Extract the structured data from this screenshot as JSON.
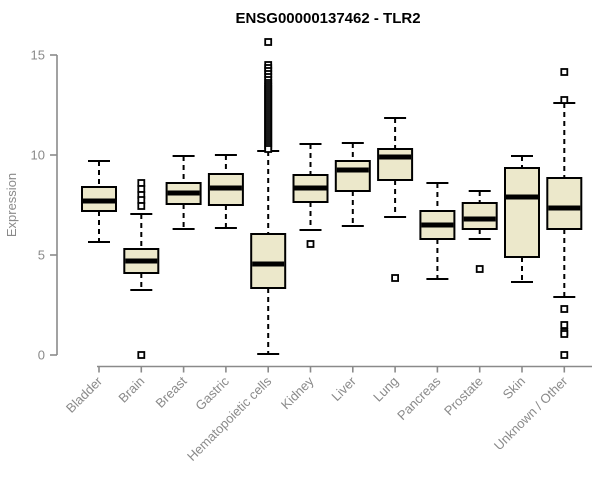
{
  "figure": {
    "background": "#ffffff"
  },
  "chart_data": {
    "type": "boxplot",
    "title": "ENSG00000137462 - TLR2",
    "xlabel": "",
    "ylabel": "Expression",
    "ylim": [
      0,
      15
    ],
    "yticks": [
      0,
      5,
      10,
      15
    ],
    "grid": false,
    "legend": "none",
    "categories": [
      "Bladder",
      "Brain",
      "Breast",
      "Gastric",
      "Hematopoietic cells",
      "Kidney",
      "Liver",
      "Lung",
      "Pancreas",
      "Prostate",
      "Skin",
      "Unknown / Other"
    ],
    "series": [
      {
        "label": "Bladder",
        "whisker_low": 5.65,
        "q1": 7.2,
        "median": 7.7,
        "q3": 8.4,
        "whisker_high": 9.7,
        "outliers": []
      },
      {
        "label": "Brain",
        "whisker_low": 3.25,
        "q1": 4.1,
        "median": 4.7,
        "q3": 5.3,
        "whisker_high": 7.05,
        "outliers": [
          8.6,
          8.3,
          8.0,
          7.75,
          7.45,
          0
        ]
      },
      {
        "label": "Breast",
        "whisker_low": 6.3,
        "q1": 7.55,
        "median": 8.1,
        "q3": 8.6,
        "whisker_high": 9.95,
        "outliers": []
      },
      {
        "label": "Gastric",
        "whisker_low": 6.35,
        "q1": 7.5,
        "median": 8.35,
        "q3": 9.05,
        "whisker_high": 10.0,
        "outliers": []
      },
      {
        "label": "Hematopoietic cells",
        "whisker_low": 0.05,
        "q1": 3.35,
        "median": 4.55,
        "q3": 6.05,
        "whisker_high": 10.2,
        "outliers": [
          15.65,
          14.5,
          14.35,
          14.2,
          14.05,
          13.9,
          13.75,
          13.6,
          13.5,
          13.4,
          13.3,
          13.2,
          13.1,
          13.0,
          12.9,
          12.8,
          12.7,
          12.6,
          12.5,
          12.4,
          12.3,
          12.2,
          12.1,
          12.0,
          11.9,
          11.8,
          11.7,
          11.6,
          11.5,
          11.4,
          11.3,
          11.2,
          11.1,
          11.0,
          10.9,
          10.8,
          10.7,
          10.6,
          10.5,
          10.4,
          10.3
        ]
      },
      {
        "label": "Kidney",
        "whisker_low": 6.25,
        "q1": 7.65,
        "median": 8.35,
        "q3": 9.0,
        "whisker_high": 10.55,
        "outliers": [
          5.55
        ]
      },
      {
        "label": "Liver",
        "whisker_low": 6.45,
        "q1": 8.2,
        "median": 9.25,
        "q3": 9.7,
        "whisker_high": 10.6,
        "outliers": []
      },
      {
        "label": "Lung",
        "whisker_low": 6.9,
        "q1": 8.75,
        "median": 9.9,
        "q3": 10.3,
        "whisker_high": 11.85,
        "outliers": [
          3.85
        ]
      },
      {
        "label": "Pancreas",
        "whisker_low": 3.8,
        "q1": 5.8,
        "median": 6.5,
        "q3": 7.2,
        "whisker_high": 8.6,
        "outliers": []
      },
      {
        "label": "Prostate",
        "whisker_low": 5.8,
        "q1": 6.3,
        "median": 6.8,
        "q3": 7.6,
        "whisker_high": 8.2,
        "outliers": [
          4.3
        ]
      },
      {
        "label": "Skin",
        "whisker_low": 3.65,
        "q1": 4.9,
        "median": 7.9,
        "q3": 9.35,
        "whisker_high": 9.95,
        "outliers": []
      },
      {
        "label": "Unknown / Other",
        "whisker_low": 2.9,
        "q1": 6.3,
        "median": 7.35,
        "q3": 8.85,
        "whisker_high": 12.6,
        "outliers": [
          14.15,
          12.75,
          2.3,
          1.5,
          1.15,
          1.05,
          0
        ]
      }
    ],
    "colors": {
      "box_fill": "#ece8cb",
      "box_stroke": "#000000",
      "median": "#000000",
      "whisker": "#000000",
      "outlier_stroke": "#000000",
      "outlier_fill": "#ffffff",
      "axis": "#8a8a8a",
      "tick_text": "#8a8a8a",
      "title_text": "#000000"
    }
  }
}
